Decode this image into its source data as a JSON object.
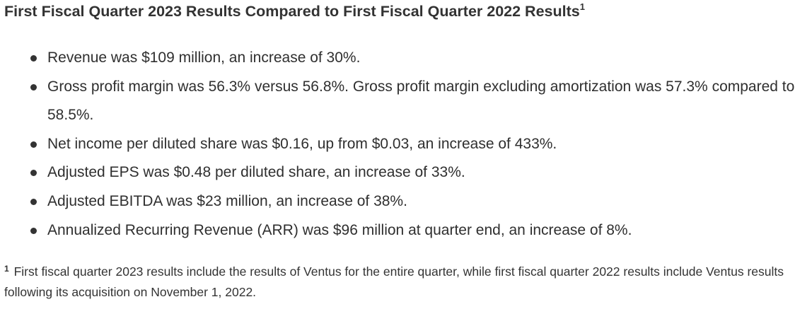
{
  "heading": {
    "text": "First Fiscal Quarter 2023 Results Compared to First Fiscal Quarter 2022 Results",
    "footnote_marker": "1"
  },
  "bullets": [
    "Revenue was $109 million, an increase of 30%.",
    "Gross profit margin was 56.3% versus 56.8%. Gross profit margin excluding amortization was 57.3% compared to 58.5%.",
    "Net income per diluted share was $0.16, up from $0.03, an increase of 433%.",
    "Adjusted EPS was $0.48 per diluted share, an increase of 33%.",
    "Adjusted EBITDA was $23 million, an increase of 38%.",
    "Annualized Recurring Revenue (ARR) was $96 million at quarter end, an increase of 8%."
  ],
  "footnote": {
    "marker": "1",
    "text": "First fiscal quarter 2023 results include the results of Ventus for the entire quarter, while first fiscal quarter 2022 results include Ventus results following its acquisition on November 1, 2022."
  }
}
